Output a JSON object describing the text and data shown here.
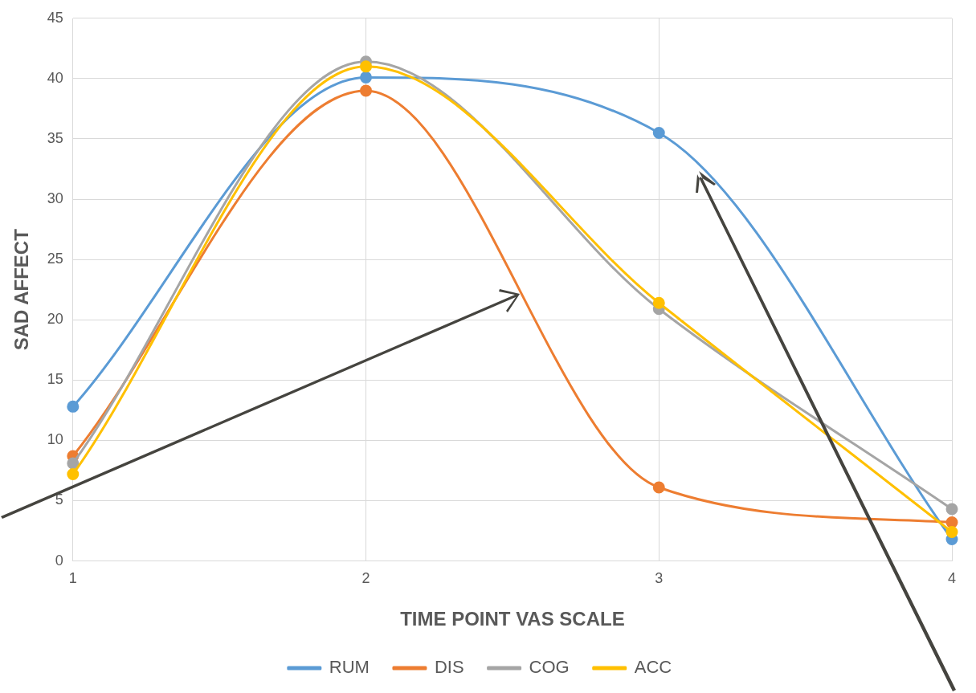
{
  "chart_data": {
    "type": "line",
    "xlabel": "TIME POINT VAS SCALE",
    "ylabel": "SAD AFFECT",
    "categories": [
      "1",
      "2",
      "3",
      "4"
    ],
    "series": [
      {
        "name": "RUM",
        "color": "#5b9bd5",
        "values": [
          12.8,
          40.1,
          35.5,
          1.8
        ]
      },
      {
        "name": "DIS",
        "color": "#ed7d31",
        "values": [
          8.7,
          39.0,
          6.1,
          3.2
        ]
      },
      {
        "name": "COG",
        "color": "#a5a5a5",
        "values": [
          8.1,
          41.4,
          20.9,
          4.3
        ]
      },
      {
        "name": "ACC",
        "color": "#ffc000",
        "values": [
          7.2,
          41.0,
          21.4,
          2.4
        ]
      }
    ],
    "ylim": [
      0,
      45
    ],
    "yticks": [
      0,
      5,
      10,
      15,
      20,
      25,
      30,
      35,
      40,
      45
    ],
    "grid": true,
    "legend": "bottom",
    "marker": "circle",
    "line_style": "solid"
  }
}
